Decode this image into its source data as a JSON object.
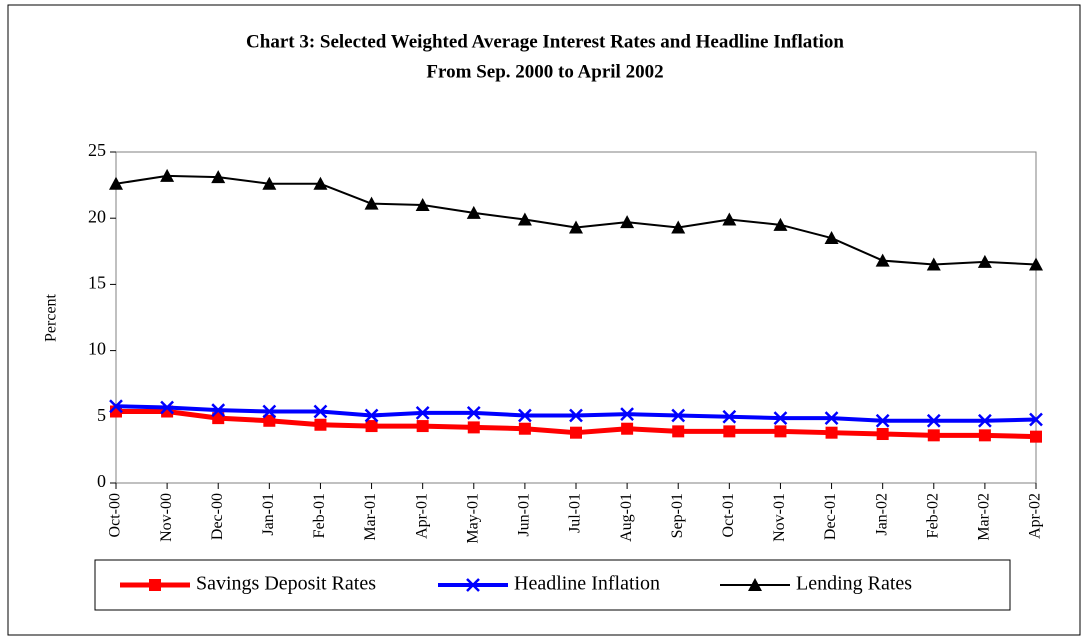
{
  "chart_data": {
    "type": "line",
    "title": "Chart 3: Selected Weighted Average Interest Rates and Headline Inflation",
    "subtitle": "From Sep. 2000 to April 2002",
    "y_label": "Percent",
    "categories": [
      "Oct-00",
      "Nov-00",
      "Dec-00",
      "Jan-01",
      "Feb-01",
      "Mar-01",
      "Apr-01",
      "May-01",
      "Jun-01",
      "Jul-01",
      "Aug-01",
      "Sep-01",
      "Oct-01",
      "Nov-01",
      "Dec-01",
      "Jan-02",
      "Feb-02",
      "Mar-02",
      "Apr-02"
    ],
    "series": [
      {
        "name": "Savings Deposit Rates",
        "color": "#ff0000",
        "marker": "square",
        "values": [
          5.4,
          5.4,
          4.9,
          4.7,
          4.4,
          4.3,
          4.3,
          4.2,
          4.1,
          3.8,
          4.1,
          3.9,
          3.9,
          3.9,
          3.8,
          3.7,
          3.6,
          3.6,
          3.5
        ]
      },
      {
        "name": "Headline Inflation",
        "color": "#0000ff",
        "marker": "x",
        "values": [
          5.8,
          5.7,
          5.5,
          5.4,
          5.4,
          5.1,
          5.3,
          5.3,
          5.1,
          5.1,
          5.2,
          5.1,
          5.0,
          4.9,
          4.9,
          4.7,
          4.7,
          4.7,
          4.8
        ]
      },
      {
        "name": "Lending Rates",
        "color": "#000000",
        "marker": "triangle",
        "values": [
          22.6,
          23.2,
          23.1,
          22.6,
          22.6,
          21.1,
          21.0,
          20.4,
          19.9,
          19.3,
          19.7,
          19.3,
          19.9,
          19.5,
          18.5,
          16.8,
          16.5,
          16.7,
          16.5
        ]
      }
    ],
    "ylim": [
      0,
      25
    ],
    "yticks": [
      0,
      5,
      10,
      15,
      20,
      25
    ],
    "grid": false,
    "legend": "bottom"
  }
}
